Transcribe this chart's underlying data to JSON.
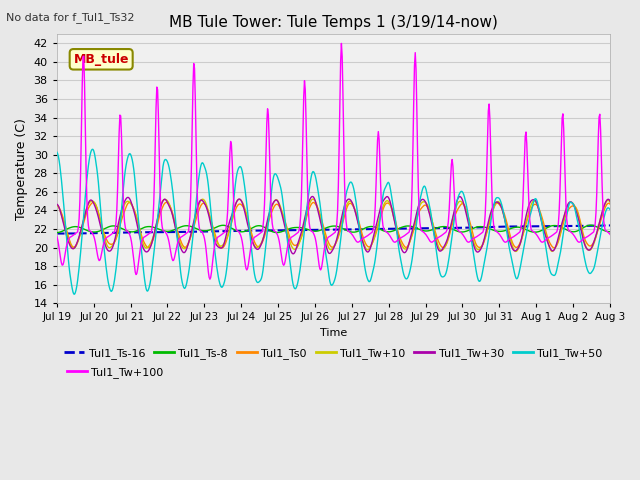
{
  "title": "MB Tule Tower: Tule Temps 1 (3/19/14-now)",
  "no_data_text": "No data for f_Tul1_Ts32",
  "ylabel": "Temperature (C)",
  "xlabel": "Time",
  "ylim": [
    14,
    43
  ],
  "yticks": [
    14,
    16,
    18,
    20,
    22,
    24,
    26,
    28,
    30,
    32,
    34,
    36,
    38,
    40,
    42
  ],
  "xlim": [
    0,
    15
  ],
  "xtick_labels": [
    "Jul 19",
    "Jul 20",
    "Jul 21",
    "Jul 22",
    "Jul 23",
    "Jul 24",
    "Jul 25",
    "Jul 26",
    "Jul 27",
    "Jul 28",
    "Jul 29",
    "Jul 30",
    "Jul 31",
    "Aug 1",
    "Aug 2",
    "Aug 3"
  ],
  "legend_entries": [
    {
      "label": "Tul1_Ts-16",
      "color": "#0000cc",
      "lw": 1.5,
      "ls": "--"
    },
    {
      "label": "Tul1_Ts-8",
      "color": "#00bb00",
      "lw": 1.0,
      "ls": "-"
    },
    {
      "label": "Tul1_Ts0",
      "color": "#ff8800",
      "lw": 1.0,
      "ls": "-"
    },
    {
      "label": "Tul1_Tw+10",
      "color": "#cccc00",
      "lw": 1.0,
      "ls": "-"
    },
    {
      "label": "Tul1_Tw+30",
      "color": "#aa00aa",
      "lw": 1.0,
      "ls": "-"
    },
    {
      "label": "Tul1_Tw+50",
      "color": "#00cccc",
      "lw": 1.0,
      "ls": "-"
    },
    {
      "label": "Tul1_Tw+100",
      "color": "#ff00ff",
      "lw": 1.0,
      "ls": "-"
    }
  ],
  "mb_tule_label": "MB_tule",
  "bg_color": "#e8e8e8",
  "plot_bg_color": "#f0f0f0",
  "grid_color": "#cccccc"
}
